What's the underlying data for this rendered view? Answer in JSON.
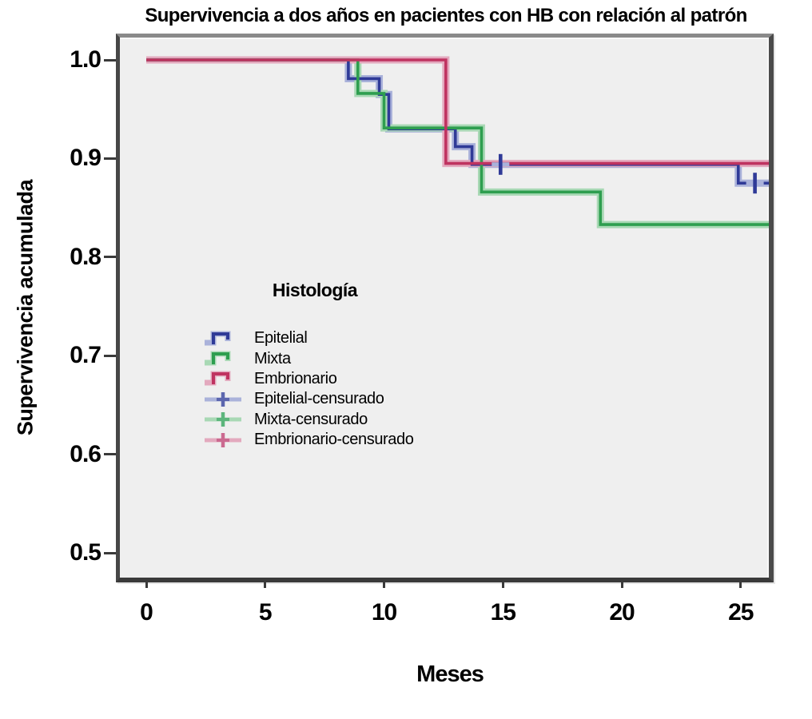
{
  "colors": {
    "page_background": "#ffffff",
    "plot_background": "#efefef",
    "frame_border": "#4a4a4a",
    "text": "#000000",
    "epitelial": "#2F3A97",
    "mixta": "#2E9E4F",
    "embrionario": "#BF3360"
  },
  "chart_data": {
    "type": "line",
    "subtype": "kaplan-meier-step-survival",
    "title": "Supervivencia a dos años en pacientes con HB con relación al patrón",
    "xlabel": "Meses",
    "ylabel": "Supervivencia acumulada",
    "x_tick_labels": [
      "0",
      "5",
      "10",
      "15",
      "20",
      "25"
    ],
    "x_tick_values": [
      0,
      5,
      10,
      15,
      20,
      25
    ],
    "y_tick_labels": [
      "1.0",
      "0.9",
      "0.8",
      "0.7",
      "0.6",
      "0.5"
    ],
    "y_tick_values": [
      1.0,
      0.9,
      0.8,
      0.7,
      0.6,
      0.5
    ],
    "xlim": [
      -1.1,
      26.45
    ],
    "ylim": [
      0.47,
      1.04
    ],
    "grid": false,
    "legend": {
      "title": "Histología",
      "position": "inside-center-left",
      "items": [
        {
          "label": "Epitelial",
          "type": "line",
          "color": "#2F3A97",
          "halo": "#AAB2DA"
        },
        {
          "label": "Mixta",
          "type": "line",
          "color": "#2E9E4F",
          "halo": "#A8D8B4"
        },
        {
          "label": "Embrionario",
          "type": "line",
          "color": "#BF3360",
          "halo": "#E3A9BE"
        },
        {
          "label": "Epitelial-censurado",
          "type": "censored",
          "color": "#5C66AE",
          "halo": "#AAB2DA"
        },
        {
          "label": "Mixta-censurado",
          "type": "censored",
          "color": "#5CB57C",
          "halo": "#A8D8B4"
        },
        {
          "label": "Embrionario-censurado",
          "type": "censored",
          "color": "#CB6A90",
          "halo": "#E3A9BE"
        }
      ]
    },
    "series": [
      {
        "name": "Epitelial",
        "color": "#2F3A97",
        "halo": "#AAB2DA",
        "steps": [
          [
            0,
            1.0
          ],
          [
            8.5,
            0.981
          ],
          [
            9.8,
            0.965
          ],
          [
            10.2,
            0.93
          ],
          [
            13.0,
            0.912
          ],
          [
            13.7,
            0.894
          ],
          [
            24.9,
            0.875
          ]
        ],
        "end_month": 26.45,
        "censored": [
          [
            14.9,
            0.894
          ],
          [
            25.6,
            0.875
          ]
        ]
      },
      {
        "name": "Mixta",
        "color": "#2E9E4F",
        "halo": "#A8D8B4",
        "steps": [
          [
            0,
            1.0
          ],
          [
            8.9,
            0.966
          ],
          [
            10.0,
            0.931
          ],
          [
            14.1,
            0.866
          ],
          [
            19.1,
            0.833
          ]
        ],
        "end_month": 26.45,
        "censored": []
      },
      {
        "name": "Embrionario",
        "color": "#BF3360",
        "halo": "#E3A9BE",
        "steps": [
          [
            0,
            1.0
          ],
          [
            12.6,
            0.895
          ]
        ],
        "end_month": 26.45,
        "censored": []
      }
    ]
  }
}
